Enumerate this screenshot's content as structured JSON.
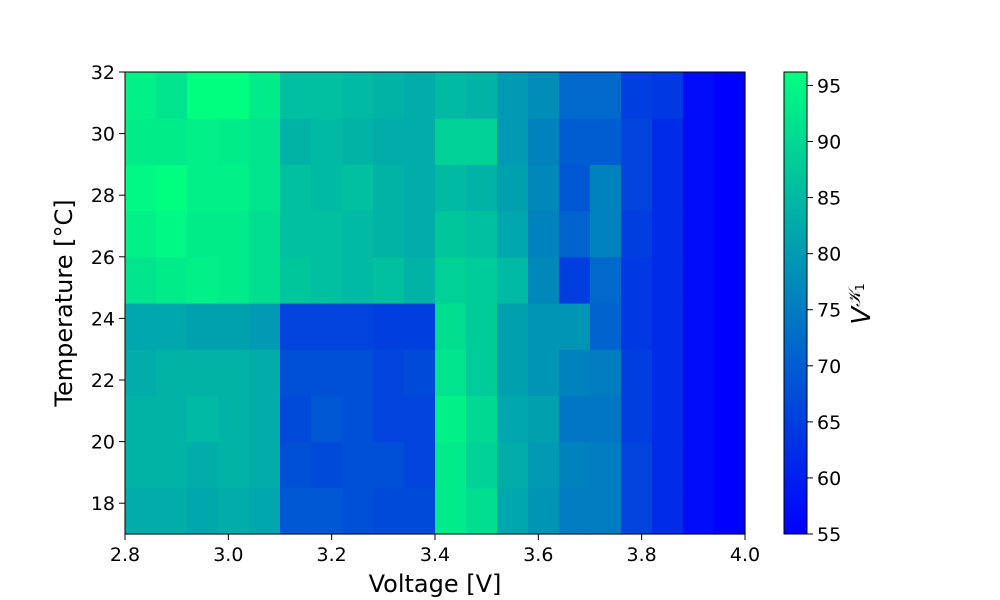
{
  "chart_data": {
    "type": "heatmap",
    "title": "",
    "xlabel": "Voltage [V]",
    "ylabel": "Temperature [°C]",
    "colorbar_label": "V^{K_1}",
    "xlim": [
      2.8,
      4.0
    ],
    "ylim": [
      17,
      32
    ],
    "x_ticks": [
      "2.8",
      "3.0",
      "3.2",
      "3.4",
      "3.6",
      "3.8",
      "4.0"
    ],
    "y_ticks": [
      "18",
      "20",
      "22",
      "24",
      "26",
      "28",
      "30",
      "32"
    ],
    "colorbar_ticks": [
      "55",
      "60",
      "65",
      "70",
      "75",
      "80",
      "85",
      "90",
      "95"
    ],
    "color_range": [
      55,
      96.2
    ],
    "colormap": "winter",
    "colormap_low": "#0000ff",
    "colormap_high": "#00ff80",
    "x_bins": 20,
    "y_bins": 10,
    "values": [
      [
        83,
        83,
        82,
        83,
        82,
        69,
        69,
        68,
        67,
        67,
        93,
        91,
        82,
        79,
        75,
        75,
        66,
        62,
        57,
        55
      ],
      [
        84,
        84,
        83,
        84,
        83,
        68,
        67,
        68,
        68,
        66,
        93,
        89,
        83,
        80,
        76,
        75,
        66,
        62,
        57,
        55
      ],
      [
        84,
        84,
        85,
        84,
        83,
        67,
        69,
        68,
        66,
        66,
        94,
        90,
        82,
        81,
        74,
        74,
        65,
        62,
        57,
        55
      ],
      [
        83,
        84,
        84,
        84,
        83,
        68,
        68,
        68,
        66,
        67,
        92,
        88,
        81,
        79,
        76,
        75,
        65,
        62,
        57,
        55
      ],
      [
        82,
        82,
        81,
        81,
        80,
        66,
        66,
        66,
        65,
        65,
        91,
        88,
        81,
        79,
        79,
        71,
        64,
        62,
        57,
        55
      ],
      [
        92,
        93,
        94,
        93,
        91,
        87,
        86,
        85,
        86,
        84,
        89,
        88,
        85,
        77,
        65,
        72,
        64,
        62,
        57,
        55
      ],
      [
        94,
        95,
        93,
        93,
        91,
        86,
        86,
        85,
        84,
        83,
        87,
        86,
        82,
        76,
        71,
        76,
        65,
        62,
        57,
        55
      ],
      [
        95,
        96,
        94,
        94,
        92,
        86,
        85,
        86,
        84,
        83,
        85,
        84,
        81,
        77,
        69,
        76,
        66,
        62,
        57,
        55
      ],
      [
        93,
        93,
        94,
        93,
        92,
        84,
        85,
        84,
        83,
        83,
        89,
        89,
        80,
        76,
        70,
        70,
        66,
        62,
        57,
        55
      ],
      [
        94,
        92,
        96,
        96,
        93,
        86,
        86,
        85,
        84,
        83,
        85,
        84,
        80,
        78,
        72,
        72,
        65,
        64,
        57,
        55
      ]
    ]
  }
}
